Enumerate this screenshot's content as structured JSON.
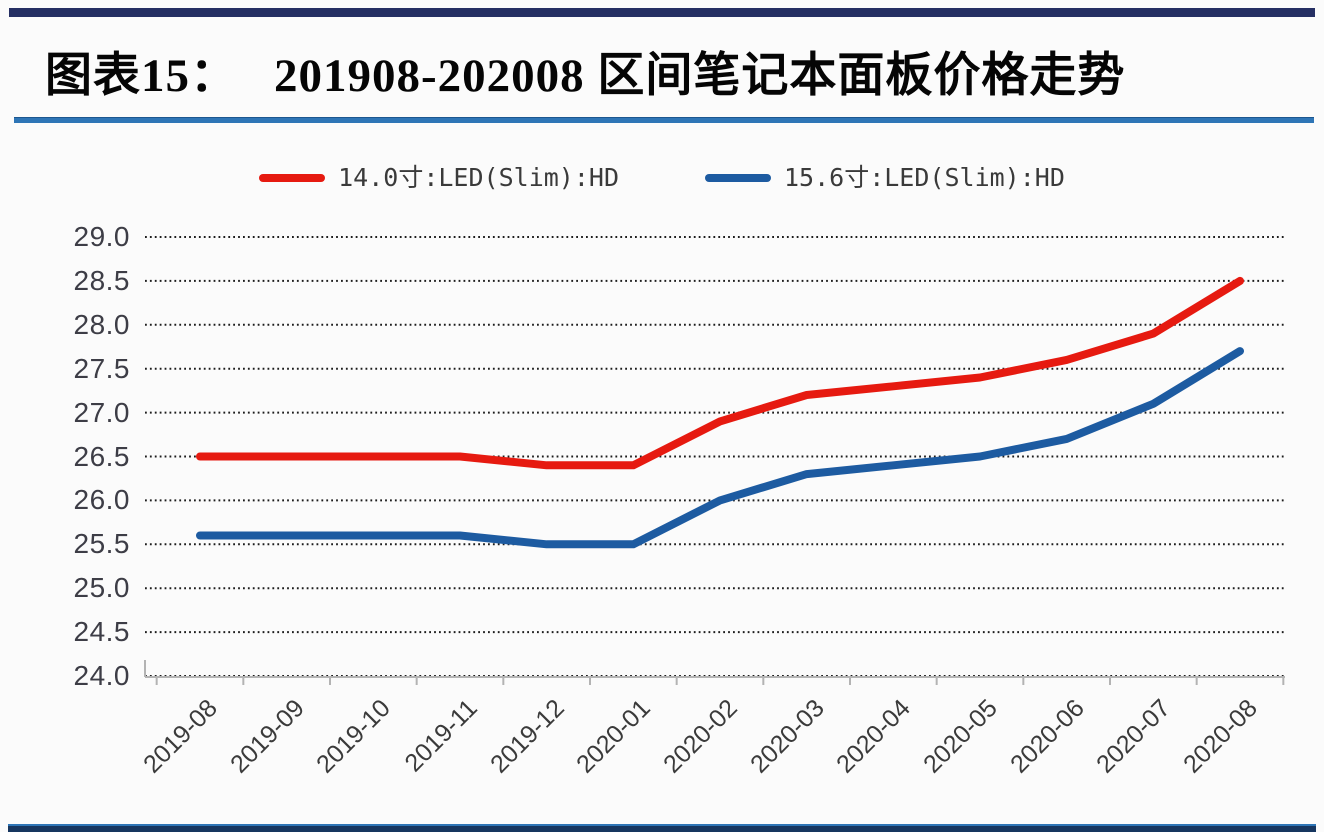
{
  "header": {
    "figure_label": "图表15：",
    "title": "201908-202008 区间笔记本面板价格走势",
    "top_bar_color": "#252f63",
    "rule_color": "#2e75b6"
  },
  "footer": {
    "rule_color": "#17365f"
  },
  "chart_data": {
    "type": "line",
    "title": "201908-202008 区间笔记本面板价格走势",
    "categories": [
      "2019-08",
      "2019-09",
      "2019-10",
      "2019-11",
      "2019-12",
      "2020-01",
      "2020-02",
      "2020-03",
      "2020-04",
      "2020-05",
      "2020-06",
      "2020-07",
      "2020-08"
    ],
    "series": [
      {
        "name": "14.0寸:LED(Slim):HD",
        "color": "#e61a10",
        "values": [
          26.5,
          26.5,
          26.5,
          26.5,
          26.4,
          26.4,
          26.9,
          27.2,
          27.3,
          27.4,
          27.6,
          27.9,
          28.5
        ]
      },
      {
        "name": "15.6寸:LED(Slim):HD",
        "color": "#1d5ba1",
        "values": [
          25.6,
          25.6,
          25.6,
          25.6,
          25.5,
          25.5,
          26.0,
          26.3,
          26.4,
          26.5,
          26.7,
          27.1,
          27.7
        ]
      }
    ],
    "xlabel": "",
    "ylabel": "",
    "ylim": [
      24.0,
      29.0
    ],
    "ytick_step": 0.5,
    "yticks": [
      "29.0",
      "28.5",
      "28.0",
      "27.5",
      "27.0",
      "26.5",
      "26.0",
      "25.5",
      "25.0",
      "24.5",
      "24.0"
    ],
    "grid": "horizontal-dotted",
    "gridline_color": "#1c1c1c",
    "axis_color": "#b3b3b3",
    "legend_position": "top-center"
  }
}
